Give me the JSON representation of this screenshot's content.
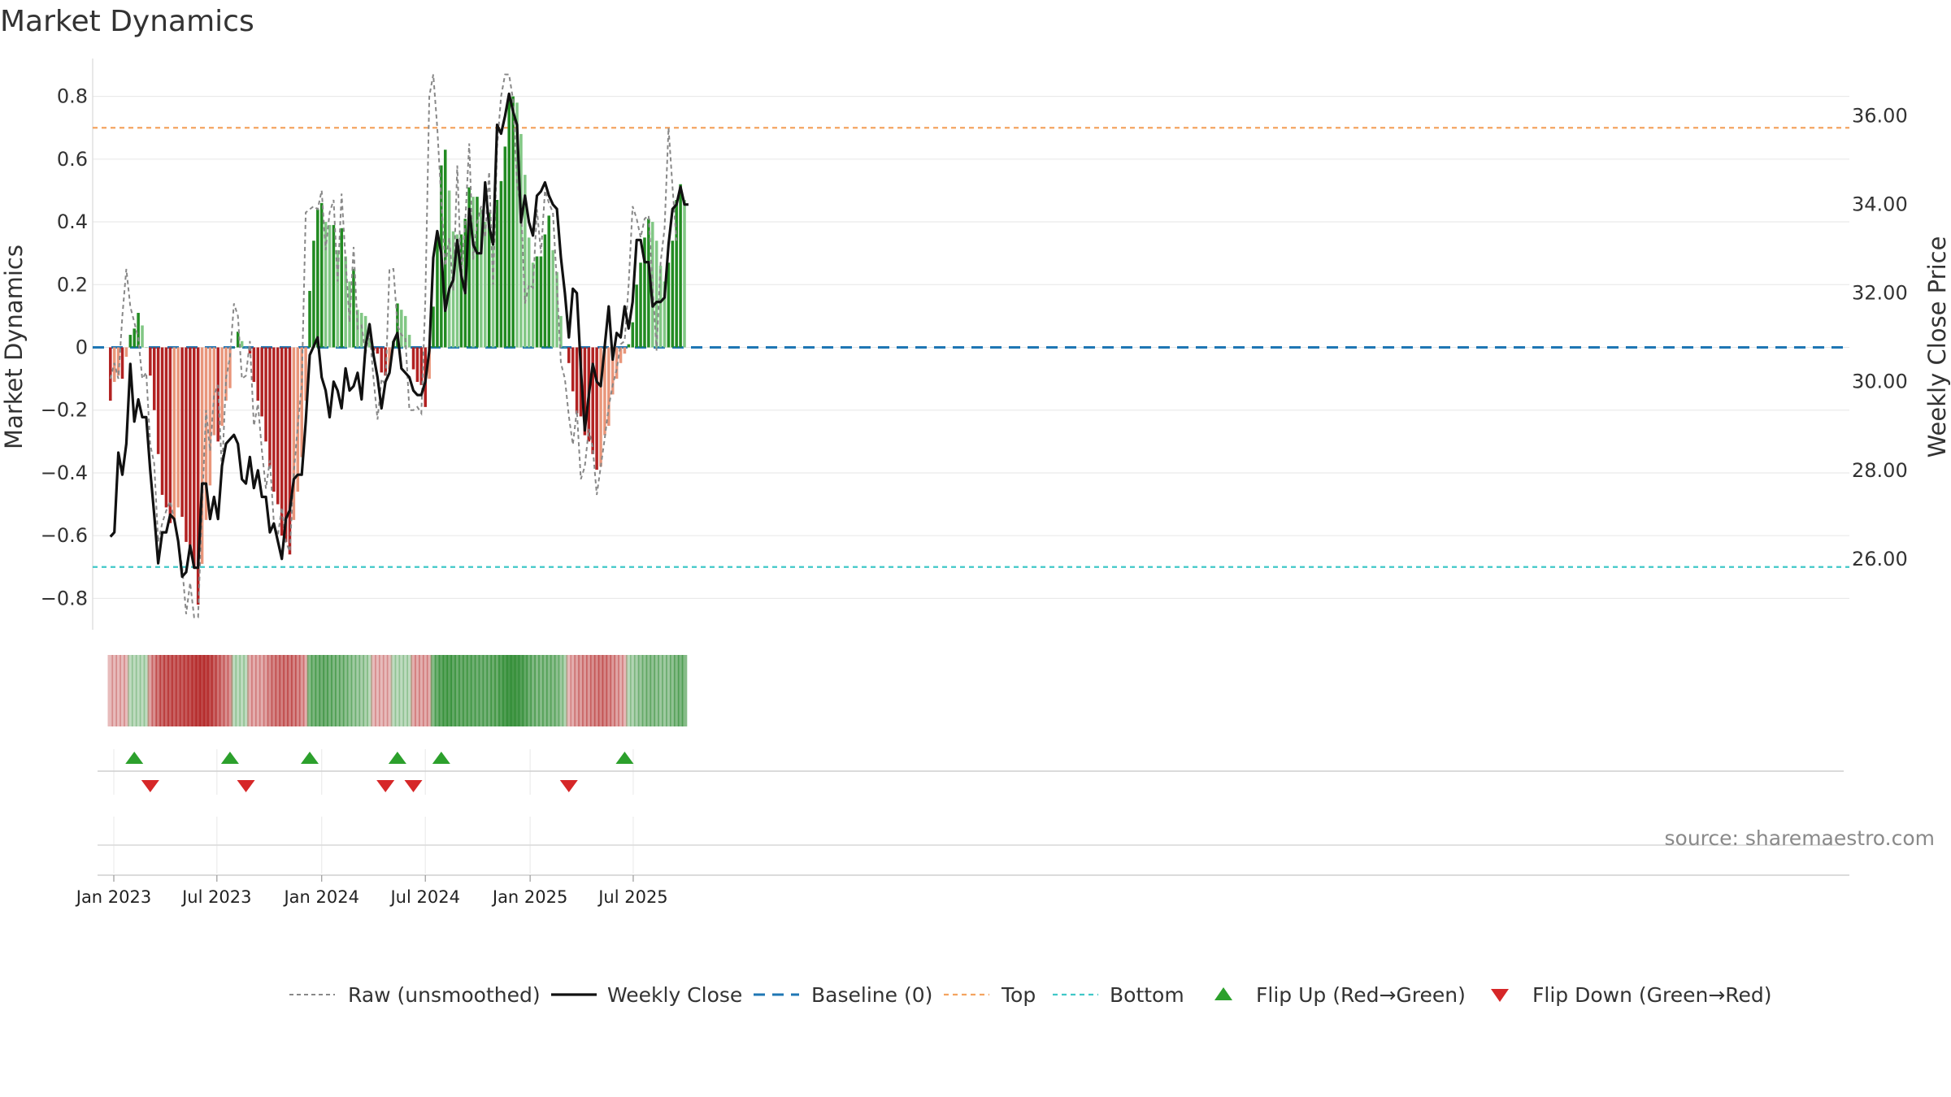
{
  "chart_data": {
    "type": "bar",
    "title": "Market Dynamics",
    "ylabel": "Market Dynamics",
    "y2label": "Weekly Close Price",
    "ylim": [
      -0.9,
      0.9
    ],
    "y2lim": [
      24.4,
      37.15
    ],
    "yticks": [
      "0.8",
      "0.6",
      "0.4",
      "0.2",
      "0",
      "−0.2",
      "−0.4",
      "−0.6",
      "−0.8"
    ],
    "y2ticks": [
      "36.00",
      "34.00",
      "32.00",
      "30.00",
      "28.00",
      "26.00"
    ],
    "xticks": [
      "Jan 2023",
      "Jul 2023",
      "Jan 2024",
      "Jul 2024",
      "Jan 2025",
      "Jul 2025"
    ],
    "xtick_dates": [
      "2023-01-01",
      "2023-07-01",
      "2024-01-01",
      "2024-07-01",
      "2025-01-01",
      "2025-07-01"
    ],
    "first_week": "2022-12-26",
    "top_line": 0.7,
    "bottom_line": -0.7,
    "baseline": 0,
    "grid": true,
    "legend_position": "bottom-center",
    "colors": {
      "strong_green": "#228b22",
      "light_green": "#81c784",
      "strong_red": "#b22222",
      "light_red": "#e9967a",
      "close_line": "#111111",
      "raw_line": "#888888",
      "baseline": "#1f77b4",
      "top": "#f4a460",
      "bottom": "#40c8c8",
      "flip_up": "#2ca02c",
      "flip_down": "#d62728"
    },
    "series": [
      {
        "name": "Market Dynamics",
        "values": [
          -0.17,
          -0.11,
          -0.09,
          -0.1,
          -0.03,
          0.04,
          0.06,
          0.11,
          0.07,
          0,
          -0.09,
          -0.2,
          -0.34,
          -0.47,
          -0.51,
          -0.56,
          -0.55,
          -0.51,
          -0.54,
          -0.62,
          -0.65,
          -0.7,
          -0.82,
          -0.69,
          -0.55,
          -0.44,
          -0.28,
          -0.3,
          -0.25,
          -0.17,
          -0.13,
          0,
          0.05,
          0.02,
          0,
          -0.02,
          -0.11,
          -0.17,
          -0.22,
          -0.3,
          -0.38,
          -0.46,
          -0.5,
          -0.6,
          -0.62,
          -0.66,
          -0.55,
          -0.46,
          -0.35,
          -0.17,
          0.18,
          0.34,
          0.44,
          0.46,
          0.4,
          0.39,
          0.39,
          0.31,
          0.38,
          0.29,
          0.21,
          0.25,
          0.12,
          0.11,
          0.1,
          0.03,
          -0.01,
          -0.02,
          -0.08,
          -0.09,
          -0.07,
          0.02,
          0.14,
          0.12,
          0.1,
          0.04,
          -0.07,
          -0.11,
          -0.12,
          -0.19,
          -0.1,
          0.13,
          0.36,
          0.58,
          0.63,
          0.5,
          0.37,
          0.36,
          0.36,
          0.41,
          0.51,
          0.48,
          0.48,
          0.44,
          0.4,
          0.43,
          0.33,
          0.47,
          0.53,
          0.64,
          0.79,
          0.8,
          0.78,
          0.68,
          0.55,
          0.35,
          0.27,
          0.29,
          0.29,
          0.36,
          0.42,
          0.31,
          0.24,
          0.1,
          0,
          -0.05,
          -0.14,
          -0.21,
          -0.22,
          -0.28,
          -0.3,
          -0.34,
          -0.39,
          -0.38,
          -0.28,
          -0.25,
          -0.15,
          -0.1,
          -0.05,
          -0.02,
          0.01,
          0.08,
          0.2,
          0.27,
          0.35,
          0.41,
          0.4,
          0.34,
          0.26,
          0.21,
          0.27,
          0.34,
          0.47,
          0.52,
          0.47
        ]
      },
      {
        "name": "Raw (unsmoothed)",
        "values": [
          -0.1,
          -0.05,
          -0.1,
          0.1,
          0.25,
          0.13,
          0.08,
          0.03,
          -0.1,
          -0.08,
          -0.31,
          -0.37,
          -0.62,
          -0.56,
          -0.52,
          -0.49,
          -0.55,
          -0.62,
          -0.7,
          -0.85,
          -0.75,
          -0.86,
          -0.86,
          -0.5,
          -0.2,
          -0.33,
          -0.15,
          -0.12,
          -0.4,
          -0.1,
          -0.03,
          0.14,
          0.1,
          -0.1,
          -0.09,
          0.02,
          -0.25,
          -0.18,
          -0.33,
          -0.45,
          -0.36,
          -0.56,
          -0.6,
          -0.51,
          -0.62,
          -0.65,
          -0.4,
          -0.25,
          -0.12,
          0.43,
          0.44,
          0.45,
          0.44,
          0.5,
          0.31,
          0.43,
          0.47,
          0.21,
          0.49,
          0.28,
          0.08,
          0.32,
          0.06,
          0.07,
          -0.02,
          0.05,
          -0.1,
          -0.23,
          -0.1,
          -0.12,
          0.25,
          0.25,
          0.07,
          0.04,
          0.03,
          -0.2,
          -0.2,
          -0.19,
          -0.21,
          0.15,
          0.8,
          0.87,
          0.7,
          0.47,
          0.26,
          0.35,
          0.18,
          0.58,
          0.23,
          0.4,
          0.65,
          0.28,
          0.4,
          0.45,
          0.35,
          0.56,
          0.2,
          0.64,
          0.8,
          0.87,
          0.87,
          0.79,
          0.52,
          0.45,
          0.14,
          0.2,
          0.19,
          0.44,
          0.3,
          0.5,
          0.46,
          0.43,
          0.2,
          -0.05,
          -0.1,
          -0.22,
          -0.31,
          -0.2,
          -0.42,
          -0.38,
          -0.26,
          -0.32,
          -0.47,
          -0.38,
          -0.29,
          -0.19,
          -0.12,
          -0.07,
          0.01,
          0.02,
          0.2,
          0.45,
          0.41,
          0.35,
          0.41,
          0.42,
          0.2,
          -0.01,
          0.27,
          0.38,
          0.7,
          0.51,
          0.34
        ]
      },
      {
        "name": "Weekly Close",
        "values": [
          26.5,
          26.6,
          28.4,
          27.9,
          28.6,
          30.4,
          29.1,
          29.6,
          29.2,
          29.2,
          28.0,
          27.0,
          25.9,
          26.6,
          26.6,
          27.0,
          26.9,
          26.4,
          25.6,
          25.7,
          26.3,
          25.8,
          25.8,
          27.7,
          27.7,
          26.9,
          27.4,
          26.9,
          28.1,
          28.6,
          28.7,
          28.8,
          28.6,
          27.8,
          27.7,
          28.3,
          27.6,
          28.0,
          27.4,
          27.4,
          26.6,
          26.8,
          26.4,
          26.0,
          26.9,
          27.1,
          27.8,
          27.9,
          27.9,
          29.1,
          30.6,
          30.8,
          31.0,
          30.1,
          29.8,
          29.2,
          30.0,
          29.8,
          29.4,
          30.3,
          29.8,
          29.9,
          30.2,
          29.6,
          30.8,
          31.3,
          30.6,
          30.1,
          29.4,
          30.0,
          30.2,
          30.9,
          31.1,
          30.3,
          30.2,
          30.1,
          29.8,
          29.7,
          29.7,
          30.0,
          30.7,
          32.8,
          33.4,
          32.9,
          31.6,
          32.1,
          32.3,
          33.2,
          32.4,
          32.0,
          33.9,
          33.1,
          32.9,
          32.9,
          34.5,
          33.5,
          33.1,
          35.8,
          35.6,
          36.0,
          36.5,
          36.1,
          35.8,
          33.6,
          34.2,
          33.6,
          33.3,
          34.2,
          34.3,
          34.5,
          34.2,
          34.0,
          33.9,
          32.8,
          32.0,
          31.0,
          32.1,
          32.0,
          30.3,
          28.9,
          29.7,
          30.4,
          30.0,
          29.9,
          30.8,
          31.7,
          30.5,
          31.1,
          31.0,
          31.7,
          31.2,
          31.8,
          33.2,
          33.2,
          32.7,
          32.7,
          31.7,
          31.8,
          31.8,
          31.9,
          33.1,
          33.9,
          34.0,
          34.4,
          34.0,
          34.0
        ]
      }
    ],
    "regime_strip": [
      -0.13,
      -0.13,
      -0.13,
      -0.13,
      -0.13,
      0.13,
      0.13,
      0.13,
      0.13,
      0.13,
      -0.25,
      -0.35,
      -0.47,
      -0.55,
      -0.58,
      -0.6,
      -0.6,
      -0.6,
      -0.62,
      -0.65,
      -0.67,
      -0.72,
      -0.75,
      -0.75,
      -0.75,
      -0.7,
      -0.6,
      -0.5,
      -0.42,
      -0.35,
      -0.32,
      0.13,
      0.13,
      0.13,
      0.13,
      -0.2,
      -0.2,
      -0.2,
      -0.2,
      -0.25,
      -0.35,
      -0.4,
      -0.42,
      -0.45,
      -0.45,
      -0.45,
      -0.42,
      -0.38,
      -0.3,
      -0.2,
      0.45,
      0.5,
      0.52,
      0.55,
      0.55,
      0.5,
      0.48,
      0.45,
      0.45,
      0.4,
      0.35,
      0.3,
      0.28,
      0.25,
      0.22,
      0.15,
      -0.13,
      -0.13,
      -0.13,
      -0.13,
      -0.13,
      0.13,
      0.13,
      0.13,
      0.13,
      0.13,
      -0.2,
      -0.2,
      -0.2,
      -0.2,
      -0.2,
      0.45,
      0.58,
      0.65,
      0.7,
      0.7,
      0.65,
      0.6,
      0.6,
      0.6,
      0.6,
      0.58,
      0.55,
      0.55,
      0.55,
      0.55,
      0.6,
      0.6,
      0.7,
      0.75,
      0.8,
      0.8,
      0.78,
      0.72,
      0.65,
      0.55,
      0.48,
      0.45,
      0.45,
      0.45,
      0.45,
      0.42,
      0.4,
      0.3,
      0.2,
      -0.13,
      -0.2,
      -0.25,
      -0.28,
      -0.3,
      -0.3,
      -0.35,
      -0.38,
      -0.4,
      -0.4,
      -0.35,
      -0.3,
      -0.25,
      -0.2,
      -0.15,
      0.15,
      0.2,
      0.25,
      0.32,
      0.35,
      0.38,
      0.38,
      0.35,
      0.32,
      0.3,
      0.32,
      0.38,
      0.45,
      0.48,
      0.45
    ],
    "flips_up": [
      "2023-02-06",
      "2023-07-24",
      "2023-12-11",
      "2024-05-13",
      "2024-07-29",
      "2025-06-16"
    ],
    "flips_down": [
      "2023-03-06",
      "2023-08-21",
      "2024-04-22",
      "2024-06-10",
      "2025-03-10"
    ]
  },
  "legend": [
    {
      "key": "raw",
      "label": "Raw (unsmoothed)"
    },
    {
      "key": "close",
      "label": "Weekly Close"
    },
    {
      "key": "baseline",
      "label": "Baseline (0)"
    },
    {
      "key": "top",
      "label": "Top"
    },
    {
      "key": "bottom",
      "label": "Bottom"
    },
    {
      "key": "flip-up",
      "label": "Flip Up (Red→Green)"
    },
    {
      "key": "flip-down",
      "label": "Flip Down (Green→Red)"
    }
  ],
  "source": "source: sharemaestro.com"
}
